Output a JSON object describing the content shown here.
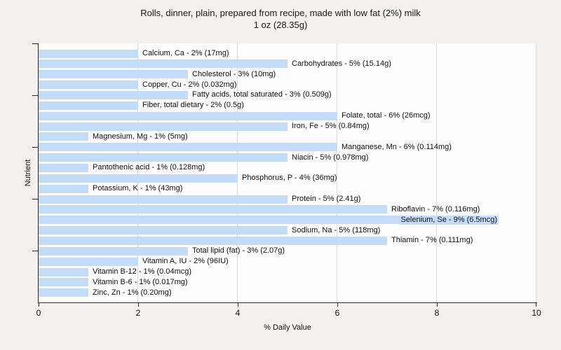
{
  "title": {
    "line1": "Rolls, dinner, plain, prepared from recipe, made with low fat (2%) milk",
    "line2": "1 oz (28.35g)"
  },
  "axes": {
    "x_label": "% Daily Value",
    "y_label": "Nutrient",
    "x_ticks": [
      0,
      2,
      4,
      6,
      8,
      10
    ],
    "x_max": 10
  },
  "colors": {
    "bar": "#c5dcf8",
    "page_bg": "#f2f1ee",
    "plot_bg": "#fcfcfc",
    "gridline": "#dcdcdc",
    "axis": "#2a2a2a"
  },
  "chart_data": {
    "type": "bar",
    "orientation": "horizontal",
    "title": "Rolls, dinner, plain, prepared from recipe, made with low fat (2%) milk — 1 oz (28.35g)",
    "xlabel": "% Daily Value",
    "ylabel": "Nutrient",
    "xlim": [
      0,
      10
    ],
    "grid": true,
    "bars": [
      {
        "nutrient": "Calcium, Ca",
        "percent_daily_value": 2,
        "amount": "17mg",
        "label": "Calcium, Ca - 2% (17mg)",
        "label_inside": false
      },
      {
        "nutrient": "Carbohydrates",
        "percent_daily_value": 5,
        "amount": "15.14g",
        "label": "Carbohydrates - 5% (15.14g)",
        "label_inside": false
      },
      {
        "nutrient": "Cholesterol",
        "percent_daily_value": 3,
        "amount": "10mg",
        "label": "Cholesterol - 3% (10mg)",
        "label_inside": false
      },
      {
        "nutrient": "Copper, Cu",
        "percent_daily_value": 2,
        "amount": "0.032mg",
        "label": "Copper, Cu - 2% (0.032mg)",
        "label_inside": false
      },
      {
        "nutrient": "Fatty acids, total saturated",
        "percent_daily_value": 3,
        "amount": "0.509g",
        "label": "Fatty acids, total saturated - 3% (0.509g)",
        "label_inside": false
      },
      {
        "nutrient": "Fiber, total dietary",
        "percent_daily_value": 2,
        "amount": "0.5g",
        "label": "Fiber, total dietary - 2% (0.5g)",
        "label_inside": false
      },
      {
        "nutrient": "Folate, total",
        "percent_daily_value": 6,
        "amount": "26mcg",
        "label": "Folate, total - 6% (26mcg)",
        "label_inside": false
      },
      {
        "nutrient": "Iron, Fe",
        "percent_daily_value": 5,
        "amount": "0.84mg",
        "label": "Iron, Fe - 5% (0.84mg)",
        "label_inside": false
      },
      {
        "nutrient": "Magnesium, Mg",
        "percent_daily_value": 1,
        "amount": "5mg",
        "label": "Magnesium, Mg - 1% (5mg)",
        "label_inside": false
      },
      {
        "nutrient": "Manganese, Mn",
        "percent_daily_value": 6,
        "amount": "0.114mg",
        "label": "Manganese, Mn - 6% (0.114mg)",
        "label_inside": false
      },
      {
        "nutrient": "Niacin",
        "percent_daily_value": 5,
        "amount": "0.978mg",
        "label": "Niacin - 5% (0.978mg)",
        "label_inside": false
      },
      {
        "nutrient": "Pantothenic acid",
        "percent_daily_value": 1,
        "amount": "0.128mg",
        "label": "Pantothenic acid - 1% (0.128mg)",
        "label_inside": false
      },
      {
        "nutrient": "Phosphorus, P",
        "percent_daily_value": 4,
        "amount": "36mg",
        "label": "Phosphorus, P - 4% (36mg)",
        "label_inside": false
      },
      {
        "nutrient": "Potassium, K",
        "percent_daily_value": 1,
        "amount": "43mg",
        "label": "Potassium, K - 1% (43mg)",
        "label_inside": false
      },
      {
        "nutrient": "Protein",
        "percent_daily_value": 5,
        "amount": "2.41g",
        "label": "Protein - 5% (2.41g)",
        "label_inside": false
      },
      {
        "nutrient": "Riboflavin",
        "percent_daily_value": 7,
        "amount": "0.116mg",
        "label": "Riboflavin - 7% (0.116mg)",
        "label_inside": false
      },
      {
        "nutrient": "Selenium, Se",
        "percent_daily_value": 9,
        "amount": "6.5mcg",
        "label": "Selenium, Se - 9% (6.5mcg)",
        "label_inside": true
      },
      {
        "nutrient": "Sodium, Na",
        "percent_daily_value": 5,
        "amount": "118mg",
        "label": "Sodium, Na - 5% (118mg)",
        "label_inside": false
      },
      {
        "nutrient": "Thiamin",
        "percent_daily_value": 7,
        "amount": "0.111mg",
        "label": "Thiamin - 7% (0.111mg)",
        "label_inside": false
      },
      {
        "nutrient": "Total lipid (fat)",
        "percent_daily_value": 3,
        "amount": "2.07g",
        "label": "Total lipid (fat) - 3% (2.07g)",
        "label_inside": false
      },
      {
        "nutrient": "Vitamin A, IU",
        "percent_daily_value": 2,
        "amount": "96IU",
        "label": "Vitamin A, IU - 2% (96IU)",
        "label_inside": false
      },
      {
        "nutrient": "Vitamin B-12",
        "percent_daily_value": 1,
        "amount": "0.04mcg",
        "label": "Vitamin B-12 - 1% (0.04mcg)",
        "label_inside": false
      },
      {
        "nutrient": "Vitamin B-6",
        "percent_daily_value": 1,
        "amount": "0.017mg",
        "label": "Vitamin B-6 - 1% (0.017mg)",
        "label_inside": false
      },
      {
        "nutrient": "Zinc, Zn",
        "percent_daily_value": 1,
        "amount": "0.20mg",
        "label": "Zinc, Zn - 1% (0.20mg)",
        "label_inside": false
      }
    ]
  }
}
